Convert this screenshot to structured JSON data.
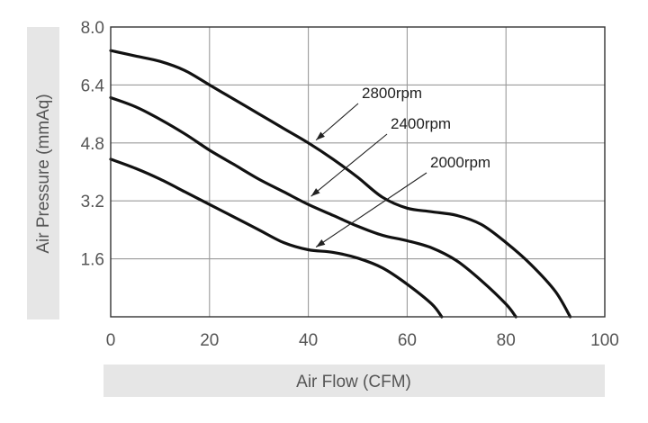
{
  "chart_data": {
    "type": "line",
    "xlabel": "Air Flow (CFM)",
    "ylabel": "Air Pressure (mmAq)",
    "xlim": [
      0,
      100
    ],
    "ylim": [
      0,
      8.0
    ],
    "x_ticks": [
      "0",
      "20",
      "40",
      "60",
      "80",
      "100"
    ],
    "y_ticks": [
      "1.6",
      "3.2",
      "4.8",
      "6.4",
      "8.0"
    ],
    "grid": true,
    "series": [
      {
        "name": "2800rpm",
        "x": [
          0,
          5,
          10,
          15,
          20,
          25,
          30,
          35,
          40,
          45,
          50,
          55,
          60,
          65,
          70,
          75,
          80,
          85,
          90,
          93
        ],
        "y": [
          7.35,
          7.2,
          7.05,
          6.8,
          6.4,
          6.0,
          5.6,
          5.2,
          4.8,
          4.35,
          3.85,
          3.3,
          3.0,
          2.9,
          2.8,
          2.55,
          2.05,
          1.45,
          0.7,
          0.0
        ]
      },
      {
        "name": "2400rpm",
        "x": [
          0,
          5,
          10,
          15,
          20,
          25,
          30,
          35,
          40,
          45,
          50,
          55,
          60,
          65,
          70,
          75,
          80,
          82
        ],
        "y": [
          6.05,
          5.8,
          5.45,
          5.05,
          4.6,
          4.2,
          3.8,
          3.45,
          3.1,
          2.8,
          2.5,
          2.25,
          2.1,
          1.9,
          1.55,
          1.0,
          0.35,
          0.0
        ]
      },
      {
        "name": "2000rpm",
        "x": [
          0,
          5,
          10,
          15,
          20,
          25,
          30,
          35,
          40,
          45,
          50,
          55,
          60,
          65,
          67
        ],
        "y": [
          4.35,
          4.1,
          3.8,
          3.45,
          3.1,
          2.75,
          2.4,
          2.05,
          1.85,
          1.78,
          1.62,
          1.35,
          0.9,
          0.35,
          0.0
        ]
      }
    ],
    "annotations": [
      {
        "text": "2800rpm",
        "point": [
          41,
          4.95
        ]
      },
      {
        "text": "2400rpm",
        "point": [
          40,
          3.4
        ]
      },
      {
        "text": "2000rpm",
        "point": [
          41,
          2.0
        ]
      }
    ]
  }
}
